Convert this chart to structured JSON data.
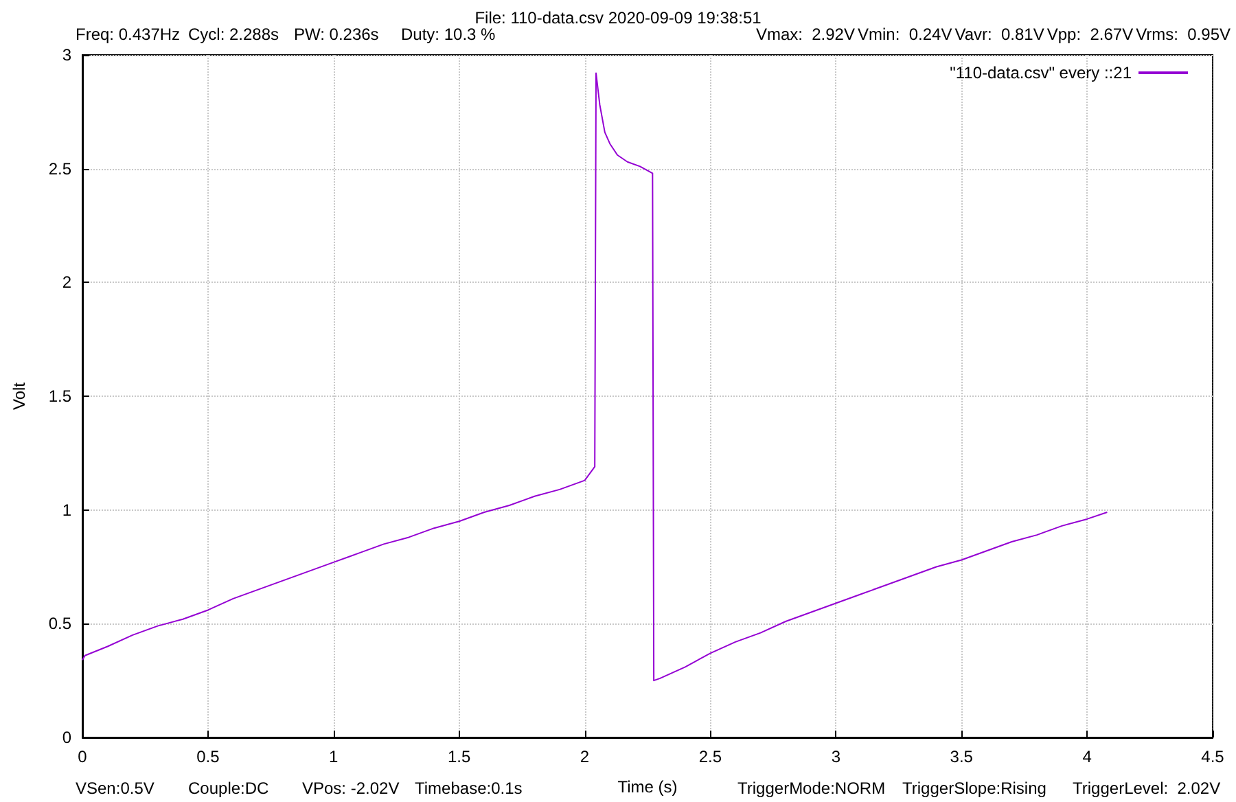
{
  "chart_data": {
    "type": "line",
    "title": "File: 110-data.csv 2020-09-09 19:38:51",
    "xlabel": "Time (s)",
    "ylabel": "Volt",
    "annotations": [
      "Freq: 0.437Hz",
      "Cycl: 2.288s",
      "PW: 0.236s",
      "Duty: 10.3 %",
      "Vmax:  2.92V",
      "Vmin:  0.24V",
      "Vavr:  0.81V",
      "Vpp:  2.67V",
      "Vrms:  0.95V",
      "VSen:0.5V",
      "Couple:DC",
      "VPos: -2.02V",
      "Timebase:0.1s",
      "TriggerMode:NORM",
      "TriggerSlope:Rising",
      "TriggerLevel:  2.02V"
    ],
    "series": [
      {
        "name": "\"110-data.csv\" every ::21",
        "color": "#9400d3",
        "x": [
          0,
          0.01,
          0.1,
          0.2,
          0.3,
          0.4,
          0.5,
          0.6,
          0.7,
          0.8,
          0.9,
          1.0,
          1.1,
          1.2,
          1.3,
          1.4,
          1.5,
          1.6,
          1.7,
          1.8,
          1.9,
          2.0,
          2.04,
          2.045,
          2.06,
          2.08,
          2.1,
          2.13,
          2.17,
          2.22,
          2.27,
          2.275,
          2.3,
          2.4,
          2.5,
          2.6,
          2.7,
          2.8,
          2.9,
          3.0,
          3.1,
          3.2,
          3.3,
          3.4,
          3.5,
          3.6,
          3.7,
          3.8,
          3.9,
          4.0,
          4.08
        ],
        "values": [
          0.34,
          0.36,
          0.4,
          0.45,
          0.49,
          0.52,
          0.56,
          0.61,
          0.65,
          0.69,
          0.73,
          0.77,
          0.81,
          0.85,
          0.88,
          0.92,
          0.95,
          0.99,
          1.02,
          1.06,
          1.09,
          1.13,
          1.19,
          2.92,
          2.78,
          2.66,
          2.61,
          2.56,
          2.53,
          2.51,
          2.48,
          0.25,
          0.26,
          0.31,
          0.37,
          0.42,
          0.46,
          0.51,
          0.55,
          0.59,
          0.63,
          0.67,
          0.71,
          0.75,
          0.78,
          0.82,
          0.86,
          0.89,
          0.93,
          0.96,
          0.99
        ]
      }
    ],
    "xlim": [
      0,
      4.5
    ],
    "xticks": [
      0,
      0.5,
      1,
      1.5,
      2,
      2.5,
      3,
      3.5,
      4,
      4.5
    ],
    "ylim": [
      0,
      3
    ],
    "yticks": [
      0,
      0.5,
      1,
      1.5,
      2,
      2.5,
      3
    ],
    "grid": true,
    "legend": "top right",
    "marker": "none",
    "line_style": "solid"
  }
}
